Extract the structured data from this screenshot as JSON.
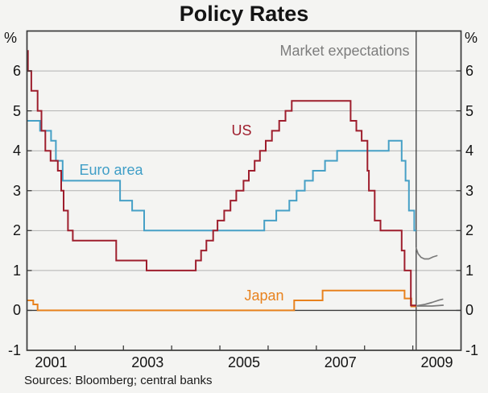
{
  "title": "Policy Rates",
  "annotation": "Market expectations",
  "footer": "Sources: Bloomberg; central banks",
  "axis": {
    "unit_left": "%",
    "unit_right": "%"
  },
  "chart_data": {
    "type": "line",
    "style": "step",
    "title": "Policy Rates",
    "x_range": [
      2001,
      2010
    ],
    "y_range": [
      -1,
      7
    ],
    "ylabel": "%",
    "grid": "horizontal",
    "legend_position": "inline-labels",
    "y_ticks": [
      6,
      5,
      4,
      3,
      2,
      1,
      0,
      -1
    ],
    "y_gridlines": [
      1,
      2,
      3,
      4,
      5,
      6
    ],
    "zero_line": 0,
    "x_boundary_ticks": [
      2002,
      2003,
      2004,
      2005,
      2006,
      2007,
      2008,
      2009
    ],
    "x_labels": [
      {
        "x": 2001.5,
        "text": "2001"
      },
      {
        "x": 2003.5,
        "text": "2003"
      },
      {
        "x": 2005.5,
        "text": "2005"
      },
      {
        "x": 2007.5,
        "text": "2007"
      },
      {
        "x": 2009.5,
        "text": "2009"
      }
    ],
    "vline_x": 2009.07,
    "series": [
      {
        "name": "US",
        "color": "#9e1e2d",
        "mode": "step",
        "end": 2009.07,
        "points": [
          [
            2001.0,
            6.5
          ],
          [
            2001.02,
            6.0
          ],
          [
            2001.09,
            5.5
          ],
          [
            2001.22,
            5.0
          ],
          [
            2001.3,
            4.5
          ],
          [
            2001.38,
            4.0
          ],
          [
            2001.49,
            3.75
          ],
          [
            2001.64,
            3.5
          ],
          [
            2001.71,
            3.0
          ],
          [
            2001.76,
            2.5
          ],
          [
            2001.85,
            2.0
          ],
          [
            2001.95,
            1.75
          ],
          [
            2002.85,
            1.25
          ],
          [
            2003.48,
            1.0
          ],
          [
            2004.5,
            1.25
          ],
          [
            2004.61,
            1.5
          ],
          [
            2004.72,
            1.75
          ],
          [
            2004.86,
            2.0
          ],
          [
            2004.95,
            2.25
          ],
          [
            2005.09,
            2.5
          ],
          [
            2005.22,
            2.75
          ],
          [
            2005.34,
            3.0
          ],
          [
            2005.49,
            3.25
          ],
          [
            2005.6,
            3.5
          ],
          [
            2005.72,
            3.75
          ],
          [
            2005.83,
            4.0
          ],
          [
            2005.95,
            4.25
          ],
          [
            2006.08,
            4.5
          ],
          [
            2006.23,
            4.75
          ],
          [
            2006.36,
            5.0
          ],
          [
            2006.49,
            5.25
          ],
          [
            2007.71,
            4.75
          ],
          [
            2007.83,
            4.5
          ],
          [
            2007.94,
            4.25
          ],
          [
            2008.06,
            3.5
          ],
          [
            2008.09,
            3.0
          ],
          [
            2008.21,
            2.25
          ],
          [
            2008.33,
            2.0
          ],
          [
            2008.77,
            1.5
          ],
          [
            2008.83,
            1.0
          ],
          [
            2008.96,
            0.125
          ]
        ]
      },
      {
        "name": "Euro area",
        "color": "#46a0c6",
        "mode": "step",
        "end": 2009.07,
        "points": [
          [
            2001.0,
            4.75
          ],
          [
            2001.27,
            4.5
          ],
          [
            2001.5,
            4.25
          ],
          [
            2001.6,
            3.75
          ],
          [
            2001.74,
            3.25
          ],
          [
            2002.93,
            2.75
          ],
          [
            2003.18,
            2.5
          ],
          [
            2003.43,
            2.0
          ],
          [
            2005.92,
            2.25
          ],
          [
            2006.17,
            2.5
          ],
          [
            2006.44,
            2.75
          ],
          [
            2006.59,
            3.0
          ],
          [
            2006.76,
            3.25
          ],
          [
            2006.93,
            3.5
          ],
          [
            2007.18,
            3.75
          ],
          [
            2007.43,
            4.0
          ],
          [
            2008.5,
            4.25
          ],
          [
            2008.77,
            3.75
          ],
          [
            2008.85,
            3.25
          ],
          [
            2008.92,
            2.5
          ],
          [
            2009.03,
            2.0
          ]
        ]
      },
      {
        "name": "Japan",
        "color": "#e8821e",
        "mode": "step",
        "end": 2009.07,
        "points": [
          [
            2001.0,
            0.25
          ],
          [
            2001.13,
            0.15
          ],
          [
            2001.22,
            0.0
          ],
          [
            2006.54,
            0.25
          ],
          [
            2007.13,
            0.5
          ],
          [
            2008.83,
            0.3
          ],
          [
            2008.97,
            0.1
          ]
        ]
      },
      {
        "name": "Euro area market expectations",
        "color": "#7a7a7a",
        "mode": "line",
        "points": [
          [
            2009.07,
            1.56
          ],
          [
            2009.11,
            1.42
          ],
          [
            2009.17,
            1.33
          ],
          [
            2009.24,
            1.29
          ],
          [
            2009.33,
            1.29
          ],
          [
            2009.42,
            1.34
          ],
          [
            2009.5,
            1.37
          ]
        ]
      },
      {
        "name": "US market expectations",
        "color": "#7a7a7a",
        "mode": "line",
        "points": [
          [
            2009.1,
            0.12
          ],
          [
            2009.25,
            0.15
          ],
          [
            2009.4,
            0.2
          ],
          [
            2009.55,
            0.26
          ],
          [
            2009.62,
            0.28
          ]
        ]
      },
      {
        "name": "Japan market expectations",
        "color": "#7a7a7a",
        "mode": "line",
        "points": [
          [
            2009.1,
            0.11
          ],
          [
            2009.4,
            0.11
          ],
          [
            2009.63,
            0.13
          ]
        ]
      }
    ]
  }
}
